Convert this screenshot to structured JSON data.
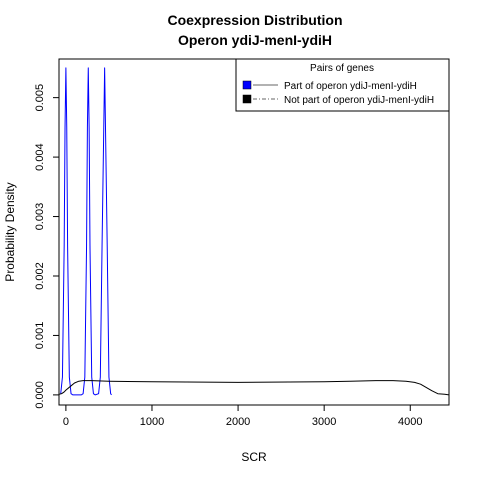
{
  "chart_data": {
    "type": "line",
    "title": "Coexpression Distribution",
    "subtitle": "Operon ydiJ-menI-ydiH",
    "xlabel": "SCR",
    "ylabel": "Probability Density",
    "xlim": [
      -80,
      4450
    ],
    "ylim": [
      -0.00017,
      0.00565
    ],
    "x_ticks": [
      0,
      1000,
      2000,
      3000,
      4000
    ],
    "x_tick_labels": [
      "0",
      "1000",
      "2000",
      "3000",
      "4000"
    ],
    "y_ticks": [
      0,
      0.001,
      0.002,
      0.003,
      0.004,
      0.005
    ],
    "y_tick_labels": [
      "0.000",
      "0.001",
      "0.002",
      "0.003",
      "0.004",
      "0.005"
    ],
    "grid": false,
    "legend": {
      "title": "Pairs of genes",
      "placement": "top-right",
      "entries": [
        {
          "label": "Part of operon ydiJ-menI-ydiH",
          "color": "#0000ff",
          "line": "solid"
        },
        {
          "label": "Not part of operon ydiJ-menI-ydiH",
          "color": "#000000",
          "line": "dash-dot"
        }
      ]
    },
    "series": [
      {
        "color": "#0000ff",
        "x": [
          -60,
          -40,
          -20,
          -10,
          0,
          10,
          20,
          40,
          60,
          80,
          100,
          180,
          200,
          220,
          240,
          250,
          260,
          270,
          280,
          300,
          320,
          340,
          380,
          400,
          420,
          440,
          450,
          460,
          480,
          500,
          520,
          530
        ],
        "y": [
          2e-05,
          0.0003,
          0.0025,
          0.0045,
          0.0055,
          0.0045,
          0.0025,
          0.0003,
          2e-05,
          0.0,
          0.0,
          0.0,
          2e-05,
          0.0003,
          0.0025,
          0.0045,
          0.0055,
          0.0045,
          0.0025,
          0.0003,
          2e-05,
          0.0,
          2e-05,
          0.0003,
          0.0025,
          0.0045,
          0.0055,
          0.0045,
          0.0025,
          0.0003,
          2e-05,
          0.0
        ]
      },
      {
        "color": "#000000",
        "x": [
          -80,
          -50,
          -20,
          0,
          50,
          100,
          150,
          200,
          300,
          500,
          1000,
          2000,
          3000,
          3300,
          3600,
          3800,
          3950,
          4050,
          4120,
          4180,
          4250,
          4320,
          4400,
          4450
        ],
        "y": [
          1e-05,
          2e-05,
          5e-05,
          8e-05,
          0.00014,
          0.0002,
          0.00023,
          0.00024,
          0.00024,
          0.00023,
          0.00022,
          0.00021,
          0.00022,
          0.00023,
          0.00024,
          0.00024,
          0.00023,
          0.00021,
          0.00018,
          0.00013,
          7e-05,
          2e-05,
          1e-05,
          0.0
        ]
      }
    ]
  }
}
